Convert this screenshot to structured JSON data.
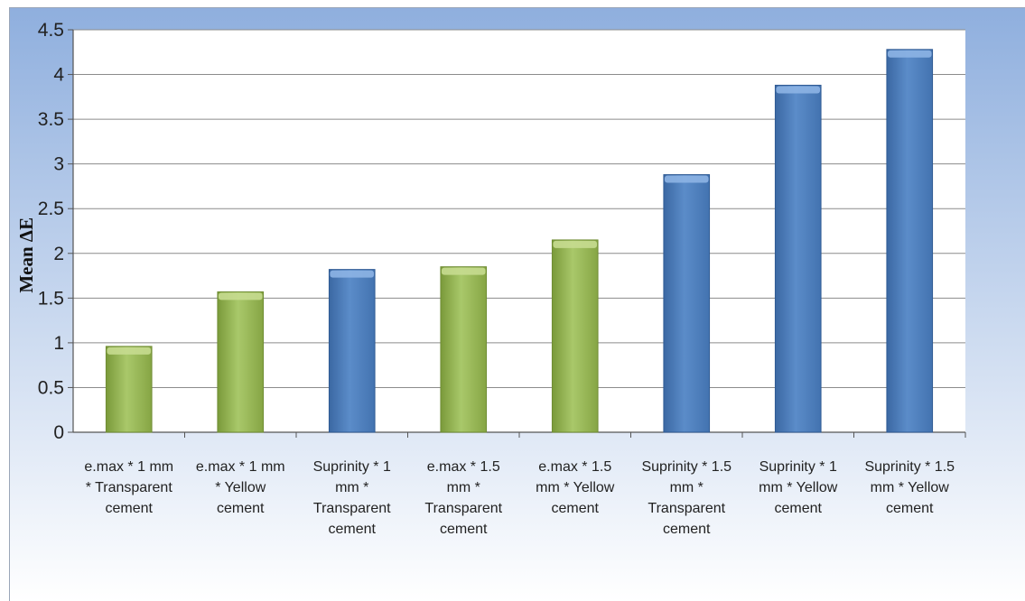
{
  "chart_data": {
    "type": "bar",
    "title": "",
    "xlabel": "",
    "ylabel": "Mean ΔE",
    "ylim": [
      0,
      4.5
    ],
    "y_ticks": [
      "0",
      "0.5",
      "1",
      "1.5",
      "2",
      "2.5",
      "3",
      "3.5",
      "4",
      "4.5"
    ],
    "grid": true,
    "legend": "none",
    "categories": [
      [
        "e.max * 1 mm",
        "* Transparent",
        "cement"
      ],
      [
        "e.max * 1 mm",
        "* Yellow",
        "cement"
      ],
      [
        "Suprinity * 1",
        "mm *",
        "Transparent",
        "cement"
      ],
      [
        "e.max * 1.5",
        "mm *",
        "Transparent",
        "cement"
      ],
      [
        "e.max * 1.5",
        "mm * Yellow",
        "cement"
      ],
      [
        "Suprinity * 1.5",
        "mm *",
        "Transparent",
        "cement"
      ],
      [
        "Suprinity * 1",
        "mm * Yellow",
        "cement"
      ],
      [
        "Suprinity * 1.5",
        "mm * Yellow",
        "cement"
      ]
    ],
    "values": [
      0.96,
      1.57,
      1.82,
      1.85,
      2.15,
      2.88,
      3.88,
      4.28
    ],
    "bar_groups": [
      "green",
      "green",
      "blue",
      "green",
      "green",
      "blue",
      "blue",
      "blue"
    ],
    "colors": {
      "green": "#9bbb59",
      "blue": "#4f81bd",
      "background_top": "#8fafde",
      "background_bottom": "#ffffff",
      "plot_area": "#ffffff",
      "gridline": "#8c8c8c"
    }
  }
}
